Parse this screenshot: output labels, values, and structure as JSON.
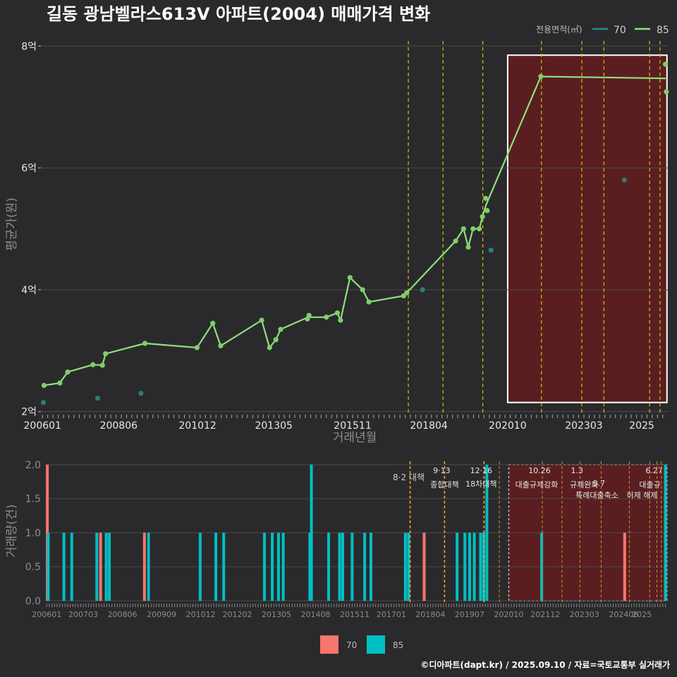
{
  "title": "길동 광남벨라스613V 아파트(2004) 매매가격 변화",
  "credit": "©디아파트(dapt.kr) / 2025.09.10 / 자료=국토교통부 실거래가",
  "colors": {
    "bg": "#2a2a2c",
    "grid": "#4a4a4a",
    "s70_line": "#2a8c88",
    "s85_line": "#90e07a",
    "s70_bar": "#f8766d",
    "s85_bar": "#00bfc4",
    "policy": "#d4c200",
    "policy_orange": "#ff9f1a",
    "highlight_fill": "#5a1e20",
    "highlight_stroke": "#ffffff"
  },
  "chart_data": [
    {
      "type": "line",
      "title": "길동 광남벨라스613V 아파트(2004) 매매가격 변화",
      "xlabel": "거래년월",
      "ylabel": "평균가(원)",
      "x_ticks": [
        "200601",
        "200806",
        "201012",
        "201305",
        "201511",
        "201804",
        "202010",
        "202303",
        "2025"
      ],
      "y_ticks": [
        "2억",
        "4억",
        "6억",
        "8억"
      ],
      "ylim": [
        1.95,
        8.2
      ],
      "xlim": [
        2005.95,
        2025.85
      ],
      "legend_title": "전용면적(㎡)",
      "legend_position": "top-right",
      "series": [
        {
          "name": "70",
          "points": [
            [
              2006.03,
              2.15
            ],
            [
              2007.75,
              2.22
            ],
            [
              2009.12,
              2.3
            ],
            [
              2018.05,
              4.0
            ],
            [
              2020.22,
              4.65
            ],
            [
              2024.45,
              5.8
            ]
          ]
        },
        {
          "name": "85",
          "points": [
            [
              2006.05,
              2.43
            ],
            [
              2006.55,
              2.47
            ],
            [
              2006.8,
              2.65
            ],
            [
              2007.6,
              2.77
            ],
            [
              2007.9,
              2.76
            ],
            [
              2008.0,
              2.95
            ],
            [
              2009.25,
              3.12
            ],
            [
              2010.9,
              3.05
            ],
            [
              2011.4,
              3.45
            ],
            [
              2011.65,
              3.08
            ],
            [
              2012.95,
              3.5
            ],
            [
              2013.2,
              3.05
            ],
            [
              2013.4,
              3.18
            ],
            [
              2013.55,
              3.35
            ],
            [
              2014.4,
              3.52
            ],
            [
              2014.45,
              3.58
            ],
            [
              2015.0,
              3.55
            ],
            [
              2015.35,
              3.62
            ],
            [
              2015.45,
              3.5
            ],
            [
              2015.75,
              4.2
            ],
            [
              2016.15,
              4.0
            ],
            [
              2016.35,
              3.8
            ],
            [
              2017.45,
              3.9
            ],
            [
              2017.55,
              3.95
            ],
            [
              2019.1,
              4.8
            ],
            [
              2019.35,
              5.0
            ],
            [
              2019.5,
              4.7
            ],
            [
              2019.65,
              5.0
            ],
            [
              2019.85,
              5.0
            ],
            [
              2019.95,
              5.2
            ],
            [
              2020.05,
              5.5
            ],
            [
              2020.1,
              5.3
            ],
            [
              2021.8,
              7.5
            ],
            [
              2025.75,
              7.7
            ],
            [
              2025.78,
              7.25
            ]
          ],
          "line": [
            [
              2006.05,
              2.43
            ],
            [
              2006.55,
              2.47
            ],
            [
              2006.8,
              2.65
            ],
            [
              2007.6,
              2.77
            ],
            [
              2007.9,
              2.76
            ],
            [
              2008.0,
              2.95
            ],
            [
              2009.25,
              3.12
            ],
            [
              2010.9,
              3.05
            ],
            [
              2011.4,
              3.45
            ],
            [
              2011.65,
              3.08
            ],
            [
              2012.95,
              3.5
            ],
            [
              2013.2,
              3.05
            ],
            [
              2013.4,
              3.18
            ],
            [
              2013.55,
              3.35
            ],
            [
              2014.42,
              3.55
            ],
            [
              2015.0,
              3.55
            ],
            [
              2015.35,
              3.62
            ],
            [
              2015.45,
              3.5
            ],
            [
              2015.75,
              4.2
            ],
            [
              2016.15,
              4.0
            ],
            [
              2016.35,
              3.8
            ],
            [
              2017.45,
              3.9
            ],
            [
              2017.55,
              3.95
            ],
            [
              2019.1,
              4.8
            ],
            [
              2019.35,
              5.0
            ],
            [
              2019.5,
              4.7
            ],
            [
              2019.65,
              5.0
            ],
            [
              2019.85,
              5.0
            ],
            [
              2019.95,
              5.2
            ],
            [
              2020.07,
              5.4
            ],
            [
              2021.8,
              7.5
            ],
            [
              2025.76,
              7.47
            ]
          ]
        }
      ],
      "highlight_range": [
        2020.75,
        2025.8
      ],
      "highlight_ylim": [
        2.15,
        7.85
      ],
      "policy_lines": [
        2017.6,
        2018.7,
        2019.96,
        2021.82,
        2023.1,
        2023.8,
        2025.25,
        2025.58
      ]
    },
    {
      "type": "bar",
      "xlabel": "",
      "ylabel": "거래량(건)",
      "x_ticks": [
        "200601",
        "200703",
        "200806",
        "200909",
        "201012",
        "201202",
        "201305",
        "201408",
        "201511",
        "201701",
        "201804",
        "201907",
        "202010",
        "202112",
        "202303",
        "202406",
        "2025"
      ],
      "y_ticks": [
        "0.0",
        "0.5",
        "1.0",
        "1.5",
        "2.0"
      ],
      "ylim": [
        0,
        2.05
      ],
      "xlim": [
        2005.95,
        2025.85
      ],
      "series": [
        {
          "name": "70",
          "bars": [
            [
              2006.02,
              2
            ],
            [
              2007.72,
              1
            ],
            [
              2009.12,
              1
            ],
            [
              2018.05,
              1
            ],
            [
              2024.45,
              1
            ]
          ]
        },
        {
          "name": "85",
          "bars": [
            [
              2006.05,
              1
            ],
            [
              2006.55,
              1
            ],
            [
              2006.8,
              1
            ],
            [
              2007.6,
              1
            ],
            [
              2007.9,
              1
            ],
            [
              2008.0,
              1
            ],
            [
              2009.25,
              1
            ],
            [
              2010.9,
              1
            ],
            [
              2011.4,
              1
            ],
            [
              2011.65,
              1
            ],
            [
              2012.95,
              1
            ],
            [
              2013.2,
              1
            ],
            [
              2013.4,
              1
            ],
            [
              2013.55,
              1
            ],
            [
              2014.4,
              1
            ],
            [
              2014.45,
              2
            ],
            [
              2015.0,
              1
            ],
            [
              2015.35,
              1
            ],
            [
              2015.45,
              1
            ],
            [
              2015.75,
              1
            ],
            [
              2016.15,
              1
            ],
            [
              2016.35,
              1
            ],
            [
              2017.45,
              1
            ],
            [
              2017.55,
              1
            ],
            [
              2019.1,
              1
            ],
            [
              2019.35,
              1
            ],
            [
              2019.5,
              1
            ],
            [
              2019.65,
              1
            ],
            [
              2019.85,
              1
            ],
            [
              2019.95,
              1
            ],
            [
              2020.05,
              2
            ],
            [
              2021.8,
              1
            ],
            [
              2025.75,
              2
            ]
          ]
        }
      ],
      "highlight_range": [
        2020.75,
        2025.8
      ],
      "policy_lines": [
        {
          "x": 2017.6,
          "label1": "",
          "label2": "8·2 대책"
        },
        {
          "x": 2018.7,
          "label1": "9·13",
          "label2": "종합대책"
        },
        {
          "x": 2019.96,
          "label1": "12·16",
          "label2": "18차대책"
        },
        {
          "x": 2020.45,
          "label1": "",
          "label2": ""
        },
        {
          "x": 2021.82,
          "label1": "10.26",
          "label2": "대출규제강화"
        },
        {
          "x": 2022.45,
          "label1": "",
          "label2": ""
        },
        {
          "x": 2023.02,
          "label1": "1.3",
          "label2": "규제완화"
        },
        {
          "x": 2023.7,
          "label1": "",
          "label2": "특례대출축소"
        },
        {
          "x": 2024.6,
          "label1": "",
          "label2": "허제 해제"
        },
        {
          "x": 2025.25,
          "label1": "",
          "label2": ""
        },
        {
          "x": 2025.48,
          "label1": "6.27",
          "label2": "대출규"
        },
        {
          "x": 2025.62,
          "label1": "",
          "label2": ""
        }
      ],
      "extra_policy_labels": [
        {
          "x": 2023.72,
          "label1": "9.7",
          "label2": ""
        }
      ],
      "legend": [
        "70",
        "85"
      ]
    }
  ]
}
